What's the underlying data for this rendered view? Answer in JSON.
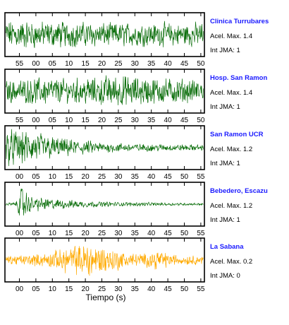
{
  "chart_data": {
    "type": "line",
    "xlabel": "Tiempo (s)",
    "panels": [
      {
        "station": "Clinica Turrubares",
        "accel_label": "Acel. Max. 1.4",
        "intensity_label": "Int JMA: 1",
        "color": "#0b6e0b",
        "amplitude": 1.4,
        "tick_labels": [
          "55",
          "00",
          "05",
          "10",
          "15",
          "20",
          "25",
          "30",
          "35",
          "40",
          "45",
          "50"
        ],
        "envelope": [
          [
            0,
            0.75
          ],
          [
            0.25,
            0.65
          ],
          [
            0.5,
            0.6
          ],
          [
            0.75,
            0.58
          ],
          [
            1,
            0.6
          ]
        ]
      },
      {
        "station": "Hosp. San Ramon",
        "accel_label": "Acel. Max. 1.4",
        "intensity_label": "Int JMA: 1",
        "color": "#0b6e0b",
        "amplitude": 1.4,
        "tick_labels": [
          "55",
          "00",
          "05",
          "10",
          "15",
          "20",
          "25",
          "30",
          "35",
          "40",
          "45",
          "50"
        ],
        "envelope": [
          [
            0,
            0.55
          ],
          [
            0.2,
            0.7
          ],
          [
            0.3,
            0.6
          ],
          [
            0.55,
            0.8
          ],
          [
            0.75,
            0.7
          ],
          [
            1,
            0.55
          ]
        ]
      },
      {
        "station": "San Ramon UCR",
        "accel_label": "Acel. Max. 1.2",
        "intensity_label": "Int JMA: 1",
        "color": "#0b6e0b",
        "amplitude": 1.2,
        "tick_labels": [
          "00",
          "05",
          "10",
          "15",
          "20",
          "25",
          "30",
          "35",
          "40",
          "45",
          "50",
          "55"
        ],
        "envelope": [
          [
            0,
            0.9
          ],
          [
            0.1,
            0.85
          ],
          [
            0.3,
            0.45
          ],
          [
            0.5,
            0.25
          ],
          [
            0.75,
            0.18
          ],
          [
            1,
            0.15
          ]
        ]
      },
      {
        "station": "Bebedero, Escazu",
        "accel_label": "Acel. Max. 1.2",
        "intensity_label": "Int JMA: 1",
        "color": "#0b6e0b",
        "amplitude": 1.2,
        "tick_labels": [
          "00",
          "05",
          "10",
          "15",
          "20",
          "25",
          "30",
          "35",
          "40",
          "45",
          "50",
          "55"
        ],
        "envelope": [
          [
            0,
            0.08
          ],
          [
            0.05,
            0.1
          ],
          [
            0.08,
            0.95
          ],
          [
            0.12,
            0.4
          ],
          [
            0.25,
            0.25
          ],
          [
            0.5,
            0.12
          ],
          [
            1,
            0.06
          ]
        ]
      },
      {
        "station": "La Sabana",
        "accel_label": "Acel. Max. 0.2",
        "intensity_label": "Int JMA: 0",
        "color": "#ffaa00",
        "amplitude": 0.2,
        "tick_labels": [
          "00",
          "05",
          "10",
          "15",
          "20",
          "25",
          "30",
          "35",
          "40",
          "45",
          "50",
          "55"
        ],
        "envelope": [
          [
            0,
            0.2
          ],
          [
            0.2,
            0.35
          ],
          [
            0.35,
            0.75
          ],
          [
            0.42,
            0.9
          ],
          [
            0.5,
            0.7
          ],
          [
            0.6,
            0.4
          ],
          [
            0.7,
            0.3
          ],
          [
            0.78,
            0.55
          ],
          [
            0.82,
            0.3
          ],
          [
            1,
            0.2
          ]
        ]
      }
    ]
  }
}
